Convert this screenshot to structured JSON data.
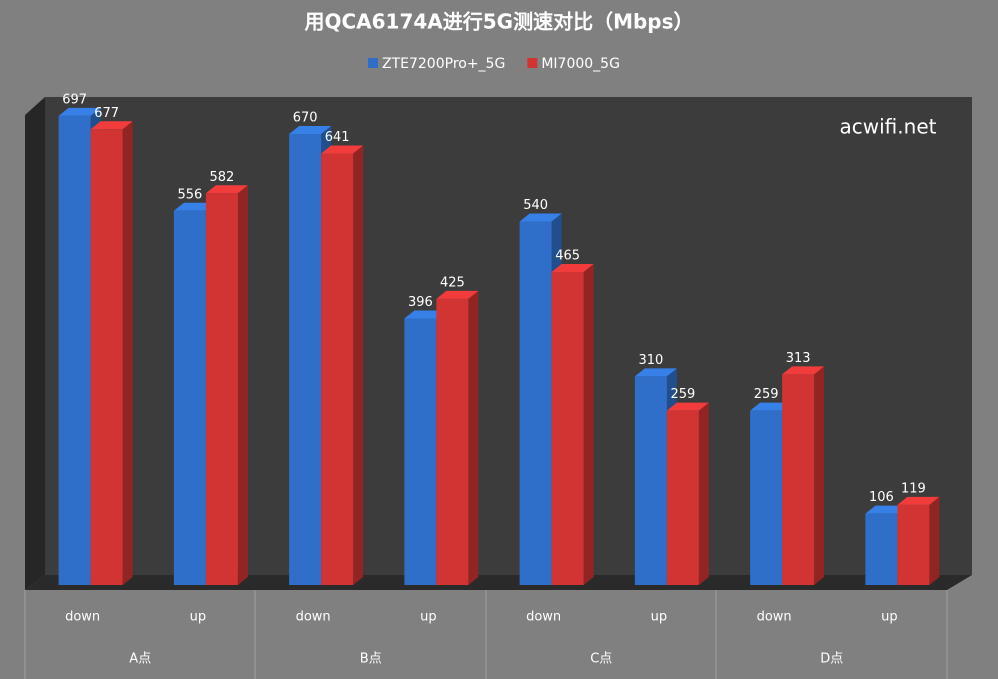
{
  "chart_data": {
    "type": "bar",
    "title": "用QCA6174A进行5G测速对比（Mbps）",
    "annotation": "acwifi.net",
    "categories": [
      "down",
      "up",
      "down",
      "up",
      "down",
      "up",
      "down",
      "up"
    ],
    "groups": [
      "A点",
      "B点",
      "C点",
      "D点"
    ],
    "series": [
      {
        "name": "ZTE7200Pro+_5G",
        "color": "#2f6fc9",
        "values": [
          697,
          556,
          670,
          396,
          540,
          310,
          259,
          106
        ]
      },
      {
        "name": "MI7000_5G",
        "color": "#d23433",
        "values": [
          677,
          582,
          641,
          425,
          465,
          259,
          313,
          119
        ]
      }
    ],
    "ylim": [
      0,
      725
    ],
    "legend": "top"
  }
}
